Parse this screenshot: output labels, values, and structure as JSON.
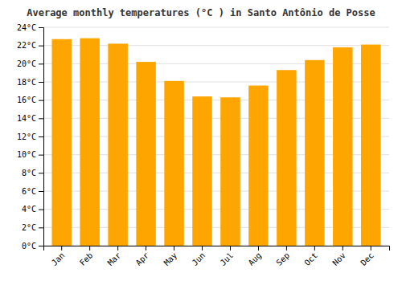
{
  "chart_data": {
    "type": "bar",
    "title": "Average monthly temperatures (°C ) in Santo Antônio de Posse",
    "categories": [
      "Jan",
      "Feb",
      "Mar",
      "Apr",
      "May",
      "Jun",
      "Jul",
      "Aug",
      "Sep",
      "Oct",
      "Nov",
      "Dec"
    ],
    "values": [
      22.7,
      22.8,
      22.2,
      20.2,
      18.1,
      16.4,
      16.3,
      17.6,
      19.3,
      20.4,
      21.8,
      22.1
    ],
    "color": "#FFA500",
    "ylim": [
      0,
      24
    ],
    "yticks": [
      {
        "value": 0,
        "label": "0°C"
      },
      {
        "value": 2,
        "label": "2°C"
      },
      {
        "value": 4,
        "label": "4°C"
      },
      {
        "value": 6,
        "label": "6°C"
      },
      {
        "value": 8,
        "label": "8°C"
      },
      {
        "value": 10,
        "label": "10°C"
      },
      {
        "value": 12,
        "label": "12°C"
      },
      {
        "value": 14,
        "label": "14°C"
      },
      {
        "value": 16,
        "label": "16°C"
      },
      {
        "value": 18,
        "label": "18°C"
      },
      {
        "value": 20,
        "label": "20°C"
      },
      {
        "value": 22,
        "label": "22°C"
      },
      {
        "value": 24,
        "label": "24°C"
      }
    ],
    "grid": true
  }
}
